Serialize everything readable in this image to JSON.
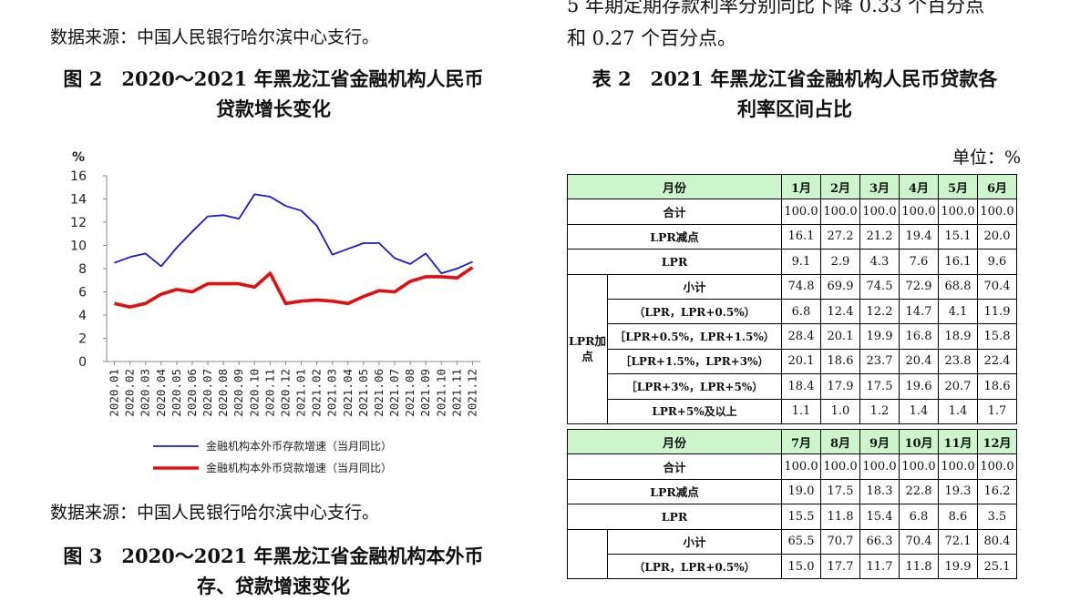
{
  "left_column": {
    "source_top": "数据来源：中国人民银行哈尔滨中心支行。",
    "figure2": {
      "title_line1": "图 2　2020～2021 年黑龙江省金融机构人民币",
      "title_line2": "贷款增长变化"
    },
    "source_bottom": "数据来源：中国人民银行哈尔滨中心支行。",
    "figure3": {
      "title_line1": "图 3　2020～2021 年黑龙江省金融机构本外币",
      "title_line2": "存、贷款增速变化"
    }
  },
  "right_column": {
    "text_line1": "5 年期定期存款利率分别同比下降 0.33 个百分点",
    "text_line2": "和 0.27 个百分点。",
    "table2": {
      "title_line1": "表 2　2021 年黑龙江省金融机构人民币贷款各",
      "title_line2": "利率区间占比",
      "unit": "单位：%",
      "side_label_line1": "LPR加",
      "side_label_line2": "点",
      "block1": {
        "header_label": "月份",
        "months": [
          "1月",
          "2月",
          "3月",
          "4月",
          "5月",
          "6月"
        ],
        "rows": [
          {
            "label": "合计",
            "values": [
              "100.0",
              "100.0",
              "100.0",
              "100.0",
              "100.0",
              "100.0"
            ]
          },
          {
            "label": "LPR减点",
            "values": [
              "16.1",
              "27.2",
              "21.2",
              "19.4",
              "15.1",
              "20.0"
            ]
          },
          {
            "label": "LPR",
            "values": [
              "9.1",
              "2.9",
              "4.3",
              "7.6",
              "16.1",
              "9.6"
            ]
          },
          {
            "label": "小计",
            "values": [
              "74.8",
              "69.9",
              "74.5",
              "72.9",
              "68.8",
              "70.4"
            ]
          },
          {
            "label": "（LPR，LPR+0.5%）",
            "values": [
              "6.8",
              "12.4",
              "12.2",
              "14.7",
              "4.1",
              "11.9"
            ]
          },
          {
            "label": "［LPR+0.5%，LPR+1.5%）",
            "values": [
              "28.4",
              "20.1",
              "19.9",
              "16.8",
              "18.9",
              "15.8"
            ]
          },
          {
            "label": "［LPR+1.5%，LPR+3%）",
            "values": [
              "20.1",
              "18.6",
              "23.7",
              "20.4",
              "23.8",
              "22.4"
            ]
          },
          {
            "label": "［LPR+3%，LPR+5%）",
            "values": [
              "18.4",
              "17.9",
              "17.5",
              "19.6",
              "20.7",
              "18.6"
            ]
          },
          {
            "label": "LPR+5%及以上",
            "values": [
              "1.1",
              "1.0",
              "1.2",
              "1.4",
              "1.4",
              "1.7"
            ]
          }
        ]
      },
      "block2": {
        "header_label": "月份",
        "months": [
          "7月",
          "8月",
          "9月",
          "10月",
          "11月",
          "12月"
        ],
        "rows": [
          {
            "label": "合计",
            "values": [
              "100.0",
              "100.0",
              "100.0",
              "100.0",
              "100.0",
              "100.0"
            ]
          },
          {
            "label": "LPR减点",
            "values": [
              "19.0",
              "17.5",
              "18.3",
              "22.8",
              "19.3",
              "16.2"
            ]
          },
          {
            "label": "LPR",
            "values": [
              "15.5",
              "11.8",
              "15.4",
              "6.8",
              "8.6",
              "3.5"
            ]
          },
          {
            "label": "小计",
            "values": [
              "65.5",
              "70.7",
              "66.3",
              "70.4",
              "72.1",
              "80.4"
            ]
          },
          {
            "label": "（LPR，LPR+0.5%）",
            "values": [
              "15.0",
              "17.7",
              "11.7",
              "11.8",
              "19.9",
              "25.1"
            ]
          }
        ]
      }
    }
  },
  "chart_data": {
    "type": "line",
    "ylabel": "%",
    "ylim": [
      0,
      16
    ],
    "yticks": [
      "0",
      "2",
      "4",
      "6",
      "8",
      "10",
      "12",
      "14",
      "16"
    ],
    "x": [
      "2020.01",
      "2020.02",
      "2020.03",
      "2020.04",
      "2020.05",
      "2020.06",
      "2020.07",
      "2020.08",
      "2020.09",
      "2020.10",
      "2020.11",
      "2020.12",
      "2021.01",
      "2021.02",
      "2021.03",
      "2021.04",
      "2021.05",
      "2021.06",
      "2021.07",
      "2021.08",
      "2021.09",
      "2021.10",
      "2021.11",
      "2021.12"
    ],
    "grid": false,
    "legend_position": "bottom",
    "series": [
      {
        "name": "金融机构本外币存款增速（当月同比）",
        "color": "#1a1acc",
        "values": [
          8.5,
          9.0,
          9.3,
          8.2,
          9.8,
          11.2,
          12.5,
          12.6,
          12.3,
          14.4,
          14.2,
          13.4,
          13.0,
          11.7,
          9.2,
          9.7,
          10.2,
          10.2,
          8.9,
          8.4,
          9.3,
          7.6,
          8.0,
          8.6
        ]
      },
      {
        "name": "金融机构本外币贷款增速（当月同比）",
        "color": "#e01010",
        "values": [
          5.0,
          4.7,
          5.0,
          5.8,
          6.2,
          6.0,
          6.7,
          6.7,
          6.7,
          6.4,
          7.6,
          5.0,
          5.2,
          5.3,
          5.2,
          5.0,
          5.6,
          6.1,
          6.0,
          6.9,
          7.3,
          7.3,
          7.2,
          8.1
        ]
      }
    ]
  }
}
